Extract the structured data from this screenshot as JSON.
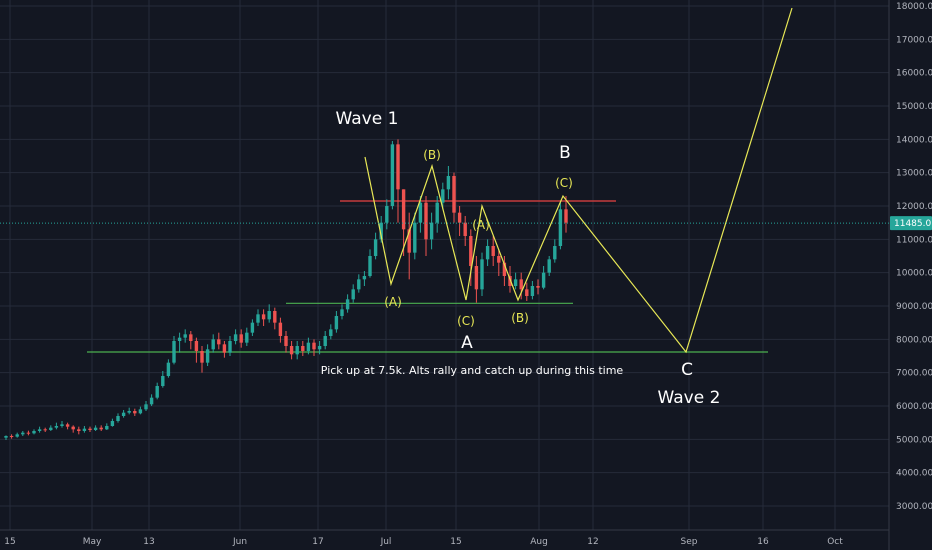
{
  "chart_data": {
    "type": "candlestick",
    "title": "",
    "xlabel": "",
    "ylabel": "",
    "ylim": [
      2300,
      18200
    ],
    "y_ticks": [
      "3000.00",
      "4000.00",
      "5000.00",
      "6000.00",
      "7000.00",
      "8000.00",
      "9000.00",
      "10000.00",
      "11000.00",
      "12000.00",
      "13000.00",
      "14000.00",
      "15000.00",
      "16000.00",
      "17000.00",
      "18000.00"
    ],
    "x_ticks": [
      "15",
      "May",
      "13",
      "Jun",
      "17",
      "Jul",
      "15",
      "Aug",
      "12",
      "Sep",
      "16",
      "Oct"
    ],
    "last_price_label": "11485.01",
    "last_price": 11485,
    "candles": [
      [
        5050,
        5100,
        4980,
        5120
      ],
      [
        5100,
        5080,
        5020,
        5150
      ],
      [
        5080,
        5150,
        5050,
        5200
      ],
      [
        5150,
        5200,
        5100,
        5250
      ],
      [
        5200,
        5180,
        5120,
        5260
      ],
      [
        5180,
        5250,
        5150,
        5300
      ],
      [
        5250,
        5300,
        5200,
        5380
      ],
      [
        5300,
        5280,
        5220,
        5350
      ],
      [
        5280,
        5350,
        5250,
        5420
      ],
      [
        5350,
        5400,
        5300,
        5500
      ],
      [
        5400,
        5450,
        5350,
        5550
      ],
      [
        5450,
        5380,
        5300,
        5500
      ],
      [
        5380,
        5300,
        5200,
        5420
      ],
      [
        5300,
        5250,
        5150,
        5380
      ],
      [
        5250,
        5320,
        5200,
        5400
      ],
      [
        5320,
        5280,
        5220,
        5380
      ],
      [
        5280,
        5350,
        5250,
        5420
      ],
      [
        5350,
        5300,
        5250,
        5420
      ],
      [
        5300,
        5400,
        5280,
        5480
      ],
      [
        5400,
        5550,
        5380,
        5620
      ],
      [
        5550,
        5700,
        5500,
        5780
      ],
      [
        5700,
        5800,
        5650,
        5880
      ],
      [
        5800,
        5850,
        5750,
        5950
      ],
      [
        5850,
        5780,
        5700,
        5920
      ],
      [
        5780,
        5900,
        5750,
        5980
      ],
      [
        5900,
        6050,
        5850,
        6150
      ],
      [
        6050,
        6250,
        6000,
        6350
      ],
      [
        6250,
        6600,
        6200,
        6700
      ],
      [
        6600,
        6900,
        6550,
        7050
      ],
      [
        6900,
        7300,
        6850,
        7400
      ],
      [
        7300,
        7950,
        7250,
        8100
      ],
      [
        7950,
        8050,
        7600,
        8200
      ],
      [
        8050,
        8150,
        7900,
        8300
      ],
      [
        8150,
        7950,
        7700,
        8250
      ],
      [
        7950,
        7650,
        7300,
        8050
      ],
      [
        7650,
        7300,
        7000,
        7800
      ],
      [
        7300,
        7700,
        7200,
        7850
      ],
      [
        7700,
        8000,
        7600,
        8150
      ],
      [
        8000,
        7850,
        7700,
        8200
      ],
      [
        7850,
        7600,
        7450,
        7950
      ],
      [
        7600,
        7950,
        7500,
        8100
      ],
      [
        7950,
        8150,
        7850,
        8300
      ],
      [
        8150,
        7900,
        7750,
        8300
      ],
      [
        7900,
        8200,
        7800,
        8350
      ],
      [
        8200,
        8500,
        8100,
        8600
      ],
      [
        8500,
        8750,
        8400,
        8900
      ],
      [
        8750,
        8600,
        8400,
        8900
      ],
      [
        8600,
        8850,
        8500,
        9050
      ],
      [
        8850,
        8500,
        8300,
        8950
      ],
      [
        8500,
        8100,
        7900,
        8650
      ],
      [
        8100,
        7800,
        7600,
        8250
      ],
      [
        7800,
        7550,
        7400,
        7950
      ],
      [
        7550,
        7800,
        7400,
        7950
      ],
      [
        7800,
        7650,
        7500,
        7950
      ],
      [
        7650,
        7900,
        7550,
        8050
      ],
      [
        7900,
        7700,
        7500,
        8000
      ],
      [
        7700,
        7800,
        7550,
        7950
      ],
      [
        7800,
        8100,
        7700,
        8250
      ],
      [
        8100,
        8300,
        8000,
        8450
      ],
      [
        8300,
        8700,
        8200,
        8850
      ],
      [
        8700,
        8900,
        8600,
        9050
      ],
      [
        8900,
        9200,
        8800,
        9350
      ],
      [
        9200,
        9500,
        9100,
        9650
      ],
      [
        9500,
        9800,
        9400,
        9950
      ],
      [
        9800,
        9900,
        9600,
        10050
      ],
      [
        9900,
        10500,
        9850,
        10700
      ],
      [
        10500,
        11000,
        10400,
        11200
      ],
      [
        11000,
        11500,
        10900,
        11700
      ],
      [
        11500,
        12000,
        11300,
        12200
      ],
      [
        12000,
        13850,
        11900,
        13950
      ],
      [
        13850,
        12500,
        11500,
        14000
      ],
      [
        12500,
        11300,
        10500,
        12500
      ],
      [
        11300,
        10600,
        9800,
        11800
      ],
      [
        10600,
        11500,
        10400,
        11800
      ],
      [
        11500,
        12100,
        11200,
        12300
      ],
      [
        12100,
        11000,
        10500,
        12300
      ],
      [
        11000,
        11500,
        10700,
        11800
      ],
      [
        11500,
        12100,
        11200,
        12300
      ],
      [
        12100,
        12500,
        11900,
        12700
      ],
      [
        12500,
        12900,
        12200,
        13200
      ],
      [
        12900,
        11800,
        11500,
        13000
      ],
      [
        11800,
        11500,
        11100,
        12000
      ],
      [
        11500,
        11100,
        10800,
        11700
      ],
      [
        11100,
        10200,
        9600,
        11300
      ],
      [
        10200,
        9500,
        9100,
        10500
      ],
      [
        9500,
        10400,
        9300,
        10600
      ],
      [
        10400,
        10800,
        10200,
        11000
      ],
      [
        10800,
        10500,
        10200,
        11100
      ],
      [
        10500,
        10300,
        9900,
        10700
      ],
      [
        10300,
        9900,
        9600,
        10500
      ],
      [
        9900,
        9600,
        9400,
        10200
      ],
      [
        9600,
        9800,
        9500,
        10000
      ],
      [
        9800,
        9500,
        9200,
        10000
      ],
      [
        9500,
        9300,
        9150,
        9700
      ],
      [
        9300,
        9600,
        9200,
        9750
      ],
      [
        9600,
        9550,
        9350,
        9800
      ],
      [
        9550,
        10000,
        9500,
        10200
      ],
      [
        10000,
        10400,
        9900,
        10500
      ],
      [
        10400,
        10800,
        10300,
        11000
      ],
      [
        10800,
        11900,
        10700,
        12100
      ],
      [
        11900,
        11500,
        11200,
        12300
      ]
    ],
    "annotations": {
      "wave1": "Wave 1",
      "wave2": "Wave 2",
      "big_a": "A",
      "big_b": "B",
      "big_c": "C",
      "sub_a1": "(A)",
      "sub_b1": "(B)",
      "sub_c1": "(C)",
      "sub_a2": "(A)",
      "sub_b2": "(B)",
      "sub_c2": "(C)",
      "note": "Pick up at 7.5k. Alts rally and catch up during this time"
    },
    "lines": {
      "support_7k5": 7620,
      "support_9k": 9080,
      "resistance": 12150
    },
    "colors": {
      "background": "#131722",
      "grid": "#262b3a",
      "up": "#26a69a",
      "down": "#ef5350",
      "wave": "#e8e856",
      "support": "#4caf50",
      "resistance": "#c43c3c",
      "price_line": "#26a69a"
    }
  }
}
